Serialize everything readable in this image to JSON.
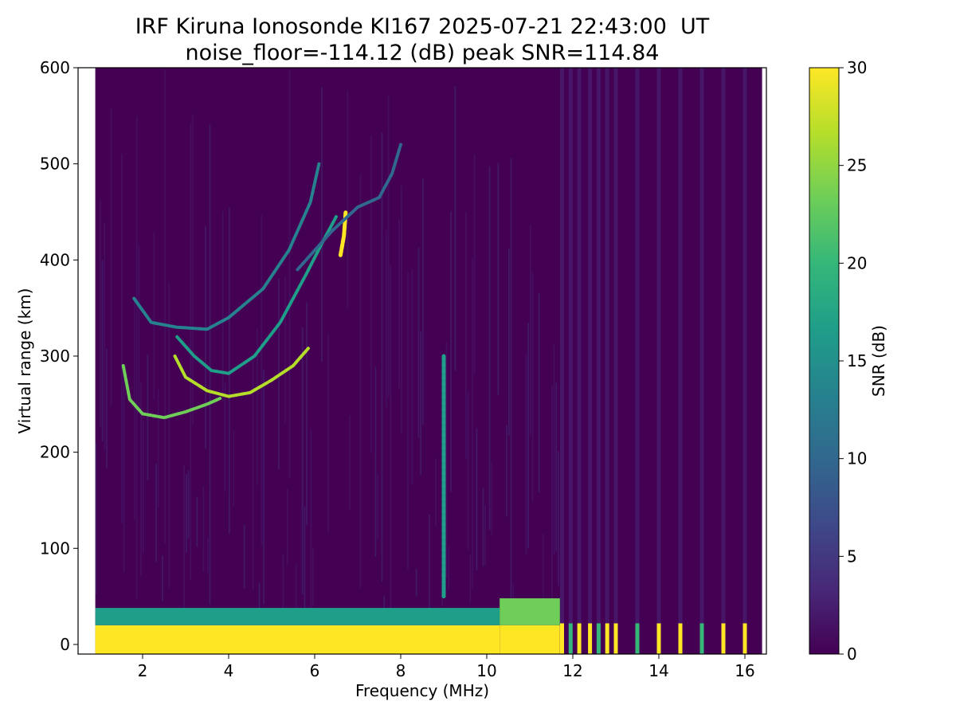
{
  "chart_data": {
    "type": "heatmap",
    "title_line1": "IRF Kiruna Ionosonde KI167 2025-07-21 22:43:00  UT",
    "title_line2": "noise_floor=-114.12 (dB) peak SNR=114.84",
    "xlabel": "Frequency (MHz)",
    "ylabel": "Virtual range (km)",
    "colorbar_label": "SNR (dB)",
    "xlim": [
      0.5,
      16.5
    ],
    "ylim": [
      -10,
      600
    ],
    "clim": [
      0,
      30
    ],
    "colormap": "viridis",
    "x_ticks": [
      2,
      4,
      6,
      8,
      10,
      12,
      14,
      16
    ],
    "y_ticks": [
      0,
      100,
      200,
      300,
      400,
      500,
      600
    ],
    "colorbar_ticks": [
      0,
      5,
      10,
      15,
      20,
      25,
      30
    ],
    "data_freq_range": [
      0.9,
      16.4
    ],
    "background_snr": 1,
    "ground_clutter": [
      {
        "f_start": 0.9,
        "f_end": 10.3,
        "range_top": 20,
        "snr": 30
      },
      {
        "f_start": 0.9,
        "f_end": 10.3,
        "range_from": 20,
        "range_to": 38,
        "snr": 16
      },
      {
        "f_start": 10.3,
        "f_end": 11.7,
        "range_top": 20,
        "snr": 30
      },
      {
        "f_start": 10.3,
        "f_end": 11.7,
        "range_from": 20,
        "range_to": 48,
        "snr": 22
      }
    ],
    "high_freq_channels_mhz": [
      11.75,
      11.95,
      12.15,
      12.4,
      12.6,
      12.8,
      13.0,
      13.5,
      14.0,
      14.5,
      15.0,
      15.5,
      16.0
    ],
    "echo_traces": [
      {
        "name": "E/F1 low trace",
        "snr": 24,
        "points": [
          [
            1.55,
            290
          ],
          [
            1.7,
            255
          ],
          [
            2.0,
            240
          ],
          [
            2.5,
            236
          ],
          [
            3.0,
            242
          ],
          [
            3.5,
            250
          ],
          [
            3.8,
            256
          ]
        ]
      },
      {
        "name": "F2 trace O",
        "snr": 26,
        "points": [
          [
            2.75,
            300
          ],
          [
            3.0,
            278
          ],
          [
            3.5,
            264
          ],
          [
            4.0,
            258
          ],
          [
            4.5,
            262
          ],
          [
            5.0,
            275
          ],
          [
            5.5,
            290
          ],
          [
            5.85,
            308
          ]
        ]
      },
      {
        "name": "F2 upper branch",
        "snr": 18,
        "points": [
          [
            2.8,
            320
          ],
          [
            3.2,
            300
          ],
          [
            3.6,
            285
          ],
          [
            4.0,
            282
          ],
          [
            4.6,
            300
          ],
          [
            5.2,
            335
          ],
          [
            5.8,
            385
          ],
          [
            6.2,
            420
          ],
          [
            6.5,
            445
          ]
        ]
      },
      {
        "name": "F2 second hop",
        "snr": 14,
        "points": [
          [
            1.8,
            360
          ],
          [
            2.2,
            335
          ],
          [
            2.8,
            330
          ],
          [
            3.5,
            328
          ],
          [
            4.0,
            340
          ],
          [
            4.8,
            370
          ],
          [
            5.4,
            410
          ],
          [
            5.9,
            460
          ],
          [
            6.1,
            500
          ]
        ]
      },
      {
        "name": "Cusp near 6.7 MHz",
        "snr": 30,
        "points": [
          [
            6.6,
            405
          ],
          [
            6.68,
            425
          ],
          [
            6.72,
            450
          ]
        ]
      },
      {
        "name": "Upper oblique arc",
        "snr": 10,
        "points": [
          [
            5.6,
            390
          ],
          [
            6.4,
            430
          ],
          [
            7.0,
            455
          ],
          [
            7.5,
            465
          ],
          [
            7.8,
            490
          ],
          [
            8.0,
            520
          ]
        ]
      },
      {
        "name": "Interference line 9 MHz",
        "snr": 17,
        "points": [
          [
            9.0,
            50
          ],
          [
            9.0,
            300
          ]
        ]
      }
    ]
  }
}
